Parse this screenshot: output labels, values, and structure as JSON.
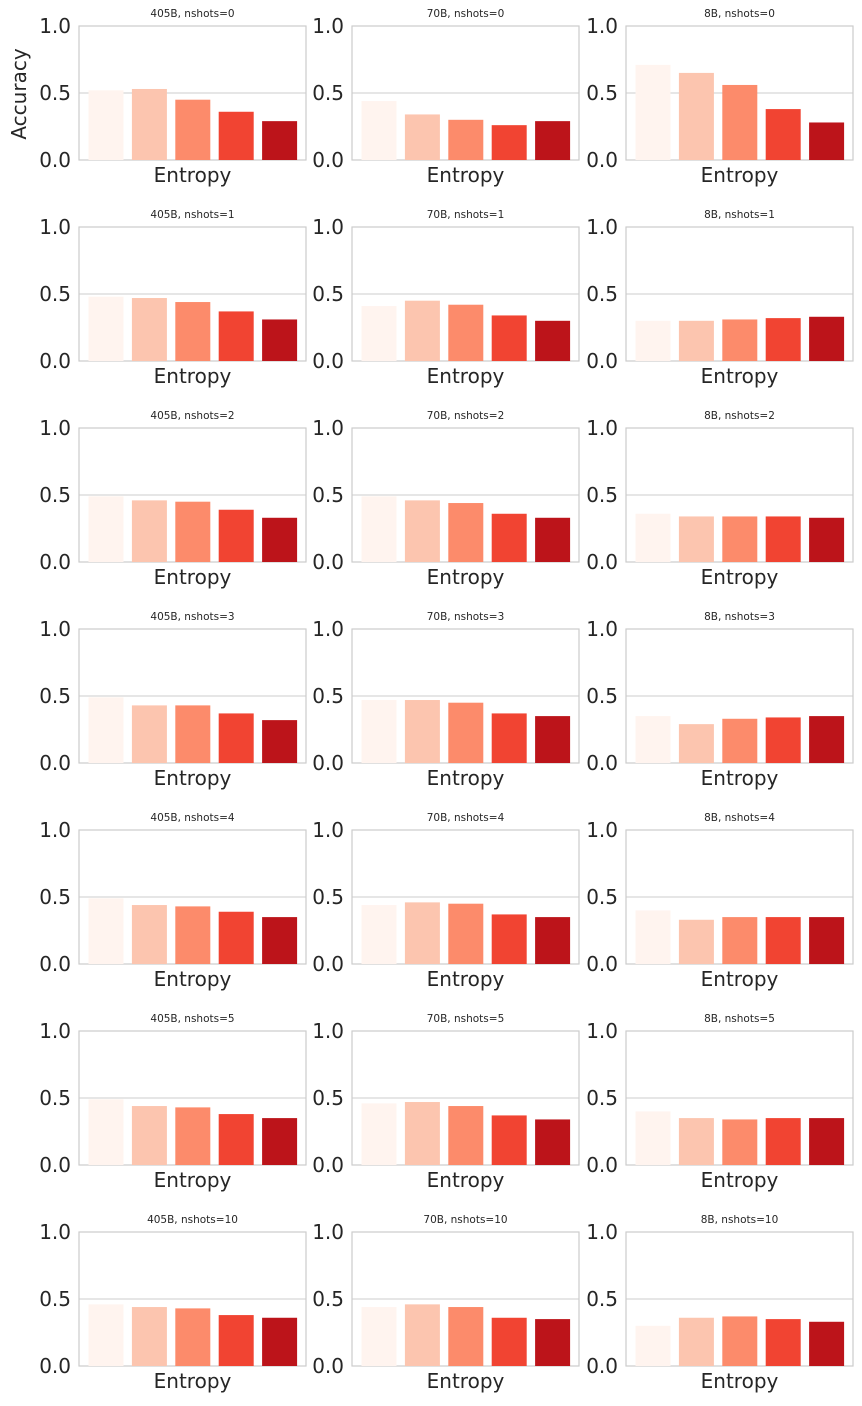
{
  "figure": {
    "ylabel": "Accuracy",
    "colors": [
      "#fff4ef",
      "#fcc5af",
      "#fc8b6b",
      "#f14432",
      "#bc141a"
    ],
    "axis_color": "#cccccc",
    "grid_color": "#cccccc",
    "text_color": "#262626"
  },
  "chart_data": [
    {
      "type": "bar",
      "title": "405B, nshots=0",
      "xlabel": "Entropy",
      "ylim": [
        0,
        1
      ],
      "yticks": [
        "0.0",
        "0.5",
        "1.0"
      ],
      "values": [
        0.52,
        0.53,
        0.45,
        0.36,
        0.29
      ]
    },
    {
      "type": "bar",
      "title": "70B, nshots=0",
      "xlabel": "Entropy",
      "ylim": [
        0,
        1
      ],
      "yticks": [
        "0.0",
        "0.5",
        "1.0"
      ],
      "values": [
        0.44,
        0.34,
        0.3,
        0.26,
        0.29
      ]
    },
    {
      "type": "bar",
      "title": "8B, nshots=0",
      "xlabel": "Entropy",
      "ylim": [
        0,
        1
      ],
      "yticks": [
        "0.0",
        "0.5",
        "1.0"
      ],
      "values": [
        0.71,
        0.65,
        0.56,
        0.38,
        0.28
      ]
    },
    {
      "type": "bar",
      "title": "405B, nshots=1",
      "xlabel": "Entropy",
      "ylim": [
        0,
        1
      ],
      "yticks": [
        "0.0",
        "0.5",
        "1.0"
      ],
      "values": [
        0.48,
        0.47,
        0.44,
        0.37,
        0.31
      ]
    },
    {
      "type": "bar",
      "title": "70B, nshots=1",
      "xlabel": "Entropy",
      "ylim": [
        0,
        1
      ],
      "yticks": [
        "0.0",
        "0.5",
        "1.0"
      ],
      "values": [
        0.41,
        0.45,
        0.42,
        0.34,
        0.3
      ]
    },
    {
      "type": "bar",
      "title": "8B, nshots=1",
      "xlabel": "Entropy",
      "ylim": [
        0,
        1
      ],
      "yticks": [
        "0.0",
        "0.5",
        "1.0"
      ],
      "values": [
        0.3,
        0.3,
        0.31,
        0.32,
        0.33
      ]
    },
    {
      "type": "bar",
      "title": "405B, nshots=2",
      "xlabel": "Entropy",
      "ylim": [
        0,
        1
      ],
      "yticks": [
        "0.0",
        "0.5",
        "1.0"
      ],
      "values": [
        0.49,
        0.46,
        0.45,
        0.39,
        0.33
      ]
    },
    {
      "type": "bar",
      "title": "70B, nshots=2",
      "xlabel": "Entropy",
      "ylim": [
        0,
        1
      ],
      "yticks": [
        "0.0",
        "0.5",
        "1.0"
      ],
      "values": [
        0.49,
        0.46,
        0.44,
        0.36,
        0.33
      ]
    },
    {
      "type": "bar",
      "title": "8B, nshots=2",
      "xlabel": "Entropy",
      "ylim": [
        0,
        1
      ],
      "yticks": [
        "0.0",
        "0.5",
        "1.0"
      ],
      "values": [
        0.36,
        0.34,
        0.34,
        0.34,
        0.33
      ]
    },
    {
      "type": "bar",
      "title": "405B, nshots=3",
      "xlabel": "Entropy",
      "ylim": [
        0,
        1
      ],
      "yticks": [
        "0.0",
        "0.5",
        "1.0"
      ],
      "values": [
        0.49,
        0.43,
        0.43,
        0.37,
        0.32
      ]
    },
    {
      "type": "bar",
      "title": "70B, nshots=3",
      "xlabel": "Entropy",
      "ylim": [
        0,
        1
      ],
      "yticks": [
        "0.0",
        "0.5",
        "1.0"
      ],
      "values": [
        0.47,
        0.47,
        0.45,
        0.37,
        0.35
      ]
    },
    {
      "type": "bar",
      "title": "8B, nshots=3",
      "xlabel": "Entropy",
      "ylim": [
        0,
        1
      ],
      "yticks": [
        "0.0",
        "0.5",
        "1.0"
      ],
      "values": [
        0.35,
        0.29,
        0.33,
        0.34,
        0.35
      ]
    },
    {
      "type": "bar",
      "title": "405B, nshots=4",
      "xlabel": "Entropy",
      "ylim": [
        0,
        1
      ],
      "yticks": [
        "0.0",
        "0.5",
        "1.0"
      ],
      "values": [
        0.49,
        0.44,
        0.43,
        0.39,
        0.35
      ]
    },
    {
      "type": "bar",
      "title": "70B, nshots=4",
      "xlabel": "Entropy",
      "ylim": [
        0,
        1
      ],
      "yticks": [
        "0.0",
        "0.5",
        "1.0"
      ],
      "values": [
        0.44,
        0.46,
        0.45,
        0.37,
        0.35
      ]
    },
    {
      "type": "bar",
      "title": "8B, nshots=4",
      "xlabel": "Entropy",
      "ylim": [
        0,
        1
      ],
      "yticks": [
        "0.0",
        "0.5",
        "1.0"
      ],
      "values": [
        0.4,
        0.33,
        0.35,
        0.35,
        0.35
      ]
    },
    {
      "type": "bar",
      "title": "405B, nshots=5",
      "xlabel": "Entropy",
      "ylim": [
        0,
        1
      ],
      "yticks": [
        "0.0",
        "0.5",
        "1.0"
      ],
      "values": [
        0.49,
        0.44,
        0.43,
        0.38,
        0.35
      ]
    },
    {
      "type": "bar",
      "title": "70B, nshots=5",
      "xlabel": "Entropy",
      "ylim": [
        0,
        1
      ],
      "yticks": [
        "0.0",
        "0.5",
        "1.0"
      ],
      "values": [
        0.46,
        0.47,
        0.44,
        0.37,
        0.34
      ]
    },
    {
      "type": "bar",
      "title": "8B, nshots=5",
      "xlabel": "Entropy",
      "ylim": [
        0,
        1
      ],
      "yticks": [
        "0.0",
        "0.5",
        "1.0"
      ],
      "values": [
        0.4,
        0.35,
        0.34,
        0.35,
        0.35
      ]
    },
    {
      "type": "bar",
      "title": "405B, nshots=10",
      "xlabel": "Entropy",
      "ylim": [
        0,
        1
      ],
      "yticks": [
        "0.0",
        "0.5",
        "1.0"
      ],
      "values": [
        0.46,
        0.44,
        0.43,
        0.38,
        0.36
      ]
    },
    {
      "type": "bar",
      "title": "70B, nshots=10",
      "xlabel": "Entropy",
      "ylim": [
        0,
        1
      ],
      "yticks": [
        "0.0",
        "0.5",
        "1.0"
      ],
      "values": [
        0.44,
        0.46,
        0.44,
        0.36,
        0.35
      ]
    },
    {
      "type": "bar",
      "title": "8B, nshots=10",
      "xlabel": "Entropy",
      "ylim": [
        0,
        1
      ],
      "yticks": [
        "0.0",
        "0.5",
        "1.0"
      ],
      "values": [
        0.3,
        0.36,
        0.37,
        0.35,
        0.33
      ]
    }
  ]
}
